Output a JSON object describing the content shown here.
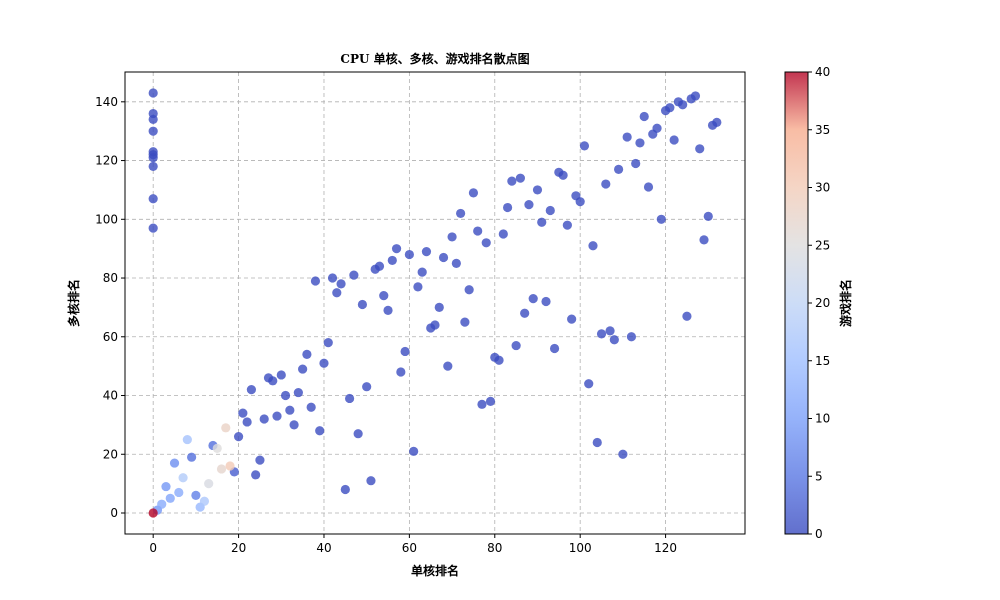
{
  "chart_data": {
    "type": "scatter",
    "title": "CPU 单核、多核、游戏排名散点图",
    "xlabel": "单核排名",
    "ylabel": "多核排名",
    "colorbar_label": "游戏排名",
    "colormap": "coolwarm",
    "xlim": [
      -6.6,
      138.6
    ],
    "ylim": [
      -7.15,
      150.15
    ],
    "xticks": [
      0,
      20,
      40,
      60,
      80,
      100,
      120
    ],
    "yticks": [
      0,
      20,
      40,
      60,
      80,
      100,
      120,
      140
    ],
    "clim": [
      0,
      40
    ],
    "cticks": [
      0,
      5,
      10,
      15,
      20,
      25,
      30,
      35,
      40
    ],
    "grid": true,
    "points": [
      {
        "x": 0,
        "y": 143,
        "c": 0
      },
      {
        "x": 0,
        "y": 136,
        "c": 0
      },
      {
        "x": 0,
        "y": 134,
        "c": 0
      },
      {
        "x": 0,
        "y": 130,
        "c": 0
      },
      {
        "x": 0,
        "y": 123,
        "c": 0
      },
      {
        "x": 0,
        "y": 122,
        "c": 0
      },
      {
        "x": 0,
        "y": 121,
        "c": 0
      },
      {
        "x": 0,
        "y": 118,
        "c": 0
      },
      {
        "x": 0,
        "y": 107,
        "c": 0
      },
      {
        "x": 0,
        "y": 97,
        "c": 0
      },
      {
        "x": 0,
        "y": 0,
        "c": 40
      },
      {
        "x": 1,
        "y": 1,
        "c": 9
      },
      {
        "x": 2,
        "y": 3,
        "c": 12
      },
      {
        "x": 3,
        "y": 9,
        "c": 9
      },
      {
        "x": 4,
        "y": 5,
        "c": 11
      },
      {
        "x": 5,
        "y": 17,
        "c": 8
      },
      {
        "x": 6,
        "y": 7,
        "c": 12
      },
      {
        "x": 7,
        "y": 12,
        "c": 18
      },
      {
        "x": 8,
        "y": 25,
        "c": 16
      },
      {
        "x": 9,
        "y": 19,
        "c": 4
      },
      {
        "x": 10,
        "y": 6,
        "c": 6
      },
      {
        "x": 11,
        "y": 2,
        "c": 14
      },
      {
        "x": 12,
        "y": 4,
        "c": 17
      },
      {
        "x": 13,
        "y": 10,
        "c": 24
      },
      {
        "x": 14,
        "y": 23,
        "c": 4
      },
      {
        "x": 15,
        "y": 22,
        "c": 25
      },
      {
        "x": 16,
        "y": 15,
        "c": 27
      },
      {
        "x": 17,
        "y": 29,
        "c": 28
      },
      {
        "x": 18,
        "y": 16,
        "c": 30
      },
      {
        "x": 19,
        "y": 14,
        "c": 2
      },
      {
        "x": 20,
        "y": 26,
        "c": 0
      },
      {
        "x": 21,
        "y": 34,
        "c": 0
      },
      {
        "x": 22,
        "y": 31,
        "c": 0
      },
      {
        "x": 23,
        "y": 42,
        "c": 0
      },
      {
        "x": 24,
        "y": 13,
        "c": 0
      },
      {
        "x": 25,
        "y": 18,
        "c": 0
      },
      {
        "x": 26,
        "y": 32,
        "c": 0
      },
      {
        "x": 27,
        "y": 46,
        "c": 0
      },
      {
        "x": 28,
        "y": 45,
        "c": 0
      },
      {
        "x": 29,
        "y": 33,
        "c": 0
      },
      {
        "x": 30,
        "y": 47,
        "c": 0
      },
      {
        "x": 31,
        "y": 40,
        "c": 0
      },
      {
        "x": 32,
        "y": 35,
        "c": 0
      },
      {
        "x": 33,
        "y": 30,
        "c": 0
      },
      {
        "x": 34,
        "y": 41,
        "c": 0
      },
      {
        "x": 35,
        "y": 49,
        "c": 0
      },
      {
        "x": 36,
        "y": 54,
        "c": 0
      },
      {
        "x": 37,
        "y": 36,
        "c": 0
      },
      {
        "x": 38,
        "y": 79,
        "c": 0
      },
      {
        "x": 39,
        "y": 28,
        "c": 0
      },
      {
        "x": 40,
        "y": 51,
        "c": 0
      },
      {
        "x": 41,
        "y": 58,
        "c": 0
      },
      {
        "x": 42,
        "y": 80,
        "c": 0
      },
      {
        "x": 43,
        "y": 75,
        "c": 0
      },
      {
        "x": 44,
        "y": 78,
        "c": 0
      },
      {
        "x": 45,
        "y": 8,
        "c": 0
      },
      {
        "x": 46,
        "y": 39,
        "c": 0
      },
      {
        "x": 47,
        "y": 81,
        "c": 0
      },
      {
        "x": 48,
        "y": 27,
        "c": 0
      },
      {
        "x": 49,
        "y": 71,
        "c": 0
      },
      {
        "x": 50,
        "y": 43,
        "c": 0
      },
      {
        "x": 51,
        "y": 11,
        "c": 0
      },
      {
        "x": 52,
        "y": 83,
        "c": 0
      },
      {
        "x": 53,
        "y": 84,
        "c": 0
      },
      {
        "x": 54,
        "y": 74,
        "c": 0
      },
      {
        "x": 55,
        "y": 69,
        "c": 0
      },
      {
        "x": 56,
        "y": 86,
        "c": 0
      },
      {
        "x": 57,
        "y": 90,
        "c": 0
      },
      {
        "x": 58,
        "y": 48,
        "c": 0
      },
      {
        "x": 59,
        "y": 55,
        "c": 0
      },
      {
        "x": 60,
        "y": 88,
        "c": 0
      },
      {
        "x": 61,
        "y": 21,
        "c": 0
      },
      {
        "x": 62,
        "y": 77,
        "c": 0
      },
      {
        "x": 63,
        "y": 82,
        "c": 0
      },
      {
        "x": 64,
        "y": 89,
        "c": 0
      },
      {
        "x": 65,
        "y": 63,
        "c": 0
      },
      {
        "x": 66,
        "y": 64,
        "c": 0
      },
      {
        "x": 67,
        "y": 70,
        "c": 0
      },
      {
        "x": 68,
        "y": 87,
        "c": 0
      },
      {
        "x": 69,
        "y": 50,
        "c": 0
      },
      {
        "x": 70,
        "y": 94,
        "c": 0
      },
      {
        "x": 71,
        "y": 85,
        "c": 0
      },
      {
        "x": 72,
        "y": 102,
        "c": 0
      },
      {
        "x": 73,
        "y": 65,
        "c": 0
      },
      {
        "x": 74,
        "y": 76,
        "c": 0
      },
      {
        "x": 75,
        "y": 109,
        "c": 0
      },
      {
        "x": 76,
        "y": 96,
        "c": 0
      },
      {
        "x": 77,
        "y": 37,
        "c": 0
      },
      {
        "x": 78,
        "y": 92,
        "c": 0
      },
      {
        "x": 79,
        "y": 38,
        "c": 0
      },
      {
        "x": 80,
        "y": 53,
        "c": 0
      },
      {
        "x": 81,
        "y": 52,
        "c": 0
      },
      {
        "x": 82,
        "y": 95,
        "c": 0
      },
      {
        "x": 83,
        "y": 104,
        "c": 0
      },
      {
        "x": 84,
        "y": 113,
        "c": 0
      },
      {
        "x": 85,
        "y": 57,
        "c": 0
      },
      {
        "x": 86,
        "y": 114,
        "c": 0
      },
      {
        "x": 87,
        "y": 68,
        "c": 0
      },
      {
        "x": 88,
        "y": 105,
        "c": 0
      },
      {
        "x": 89,
        "y": 73,
        "c": 0
      },
      {
        "x": 90,
        "y": 110,
        "c": 0
      },
      {
        "x": 91,
        "y": 99,
        "c": 0
      },
      {
        "x": 92,
        "y": 72,
        "c": 0
      },
      {
        "x": 93,
        "y": 103,
        "c": 0
      },
      {
        "x": 94,
        "y": 56,
        "c": 0
      },
      {
        "x": 95,
        "y": 116,
        "c": 0
      },
      {
        "x": 96,
        "y": 115,
        "c": 0
      },
      {
        "x": 97,
        "y": 98,
        "c": 0
      },
      {
        "x": 98,
        "y": 66,
        "c": 0
      },
      {
        "x": 99,
        "y": 108,
        "c": 0
      },
      {
        "x": 100,
        "y": 106,
        "c": 0
      },
      {
        "x": 101,
        "y": 125,
        "c": 0
      },
      {
        "x": 102,
        "y": 44,
        "c": 0
      },
      {
        "x": 103,
        "y": 91,
        "c": 0
      },
      {
        "x": 104,
        "y": 24,
        "c": 0
      },
      {
        "x": 105,
        "y": 61,
        "c": 0
      },
      {
        "x": 106,
        "y": 112,
        "c": 0
      },
      {
        "x": 107,
        "y": 62,
        "c": 0
      },
      {
        "x": 108,
        "y": 59,
        "c": 0
      },
      {
        "x": 109,
        "y": 117,
        "c": 0
      },
      {
        "x": 110,
        "y": 20,
        "c": 0
      },
      {
        "x": 111,
        "y": 128,
        "c": 0
      },
      {
        "x": 112,
        "y": 60,
        "c": 0
      },
      {
        "x": 113,
        "y": 119,
        "c": 0
      },
      {
        "x": 114,
        "y": 126,
        "c": 0
      },
      {
        "x": 115,
        "y": 135,
        "c": 0
      },
      {
        "x": 116,
        "y": 111,
        "c": 0
      },
      {
        "x": 117,
        "y": 129,
        "c": 0
      },
      {
        "x": 118,
        "y": 131,
        "c": 0
      },
      {
        "x": 119,
        "y": 100,
        "c": 0
      },
      {
        "x": 120,
        "y": 137,
        "c": 0
      },
      {
        "x": 121,
        "y": 138,
        "c": 0
      },
      {
        "x": 122,
        "y": 127,
        "c": 0
      },
      {
        "x": 123,
        "y": 140,
        "c": 0
      },
      {
        "x": 124,
        "y": 139,
        "c": 0
      },
      {
        "x": 125,
        "y": 67,
        "c": 0
      },
      {
        "x": 126,
        "y": 141,
        "c": 0
      },
      {
        "x": 127,
        "y": 142,
        "c": 0
      },
      {
        "x": 128,
        "y": 124,
        "c": 0
      },
      {
        "x": 129,
        "y": 93,
        "c": 0
      },
      {
        "x": 130,
        "y": 101,
        "c": 0
      },
      {
        "x": 131,
        "y": 132,
        "c": 0
      },
      {
        "x": 132,
        "y": 133,
        "c": 0
      }
    ]
  }
}
